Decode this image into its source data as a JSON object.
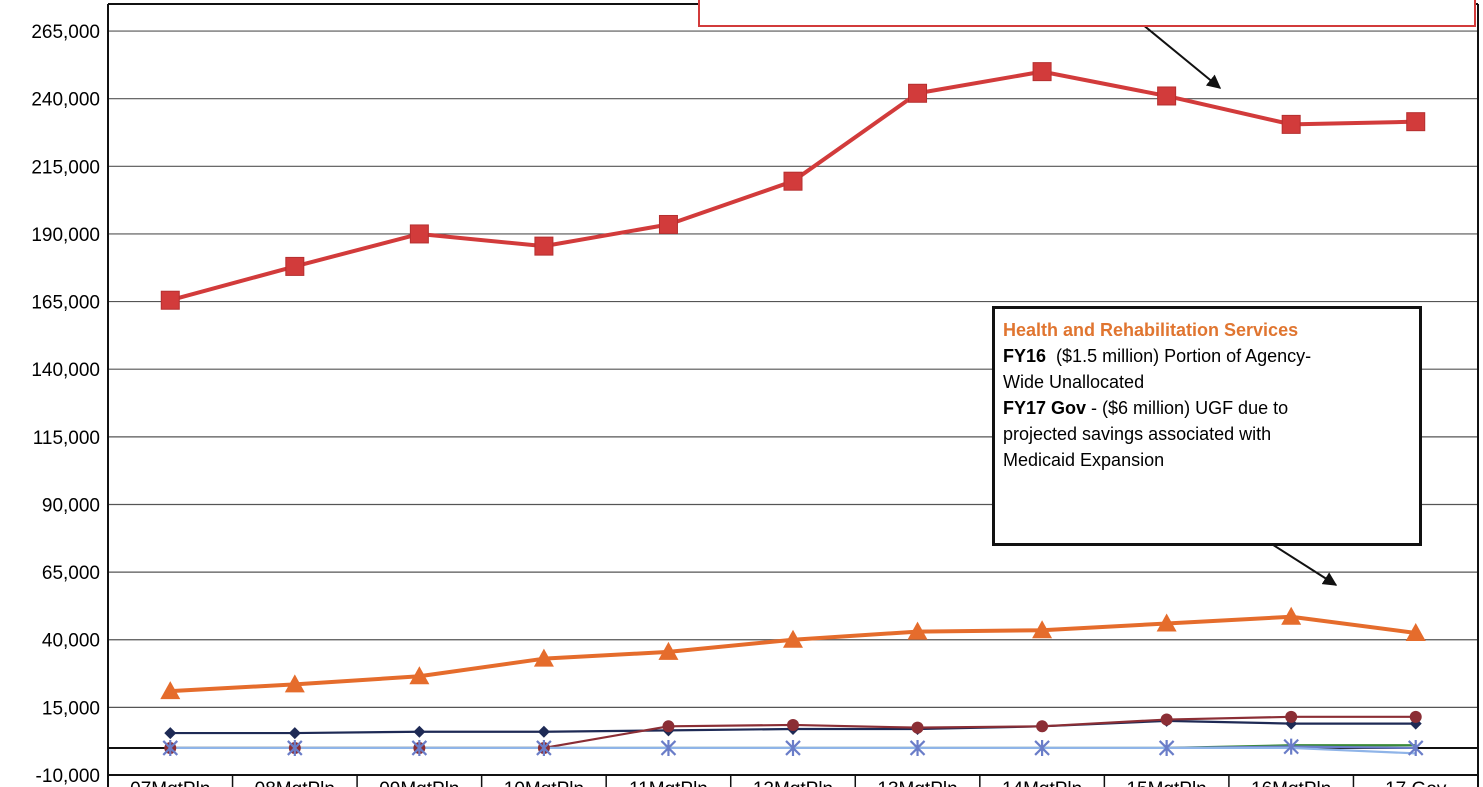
{
  "chart_data": {
    "type": "line",
    "title": "",
    "xlabel": "",
    "ylabel": "",
    "categories": [
      "07MgtPln",
      "08MgtPln",
      "09MgtPln",
      "10MgtPln",
      "11MgtPln",
      "12MgtPln",
      "13MgtPln",
      "14MgtPln",
      "15MgtPln",
      "16MgtPln",
      "17 Gov"
    ],
    "ylim": [
      -10000,
      275000
    ],
    "yticks": [
      -10000,
      15000,
      40000,
      65000,
      90000,
      115000,
      140000,
      165000,
      190000,
      215000,
      240000,
      265000
    ],
    "ytick_labels": [
      "-10,000",
      "15,000",
      "40,000",
      "65,000",
      "90,000",
      "115,000",
      "140,000",
      "165,000",
      "190,000",
      "215,000",
      "240,000",
      "265,000"
    ],
    "grid": "horizontal",
    "series": [
      {
        "color": "#d23b3b",
        "marker": "square",
        "values": [
          165500,
          178000,
          190000,
          185500,
          193500,
          209500,
          242000,
          250000,
          241000,
          230500,
          231500
        ]
      },
      {
        "color": "#e56c2c",
        "marker": "triangle",
        "values": [
          21000,
          23500,
          26500,
          33000,
          35500,
          40000,
          43000,
          43500,
          46000,
          48500,
          42500
        ]
      },
      {
        "color": "#1e2a55",
        "marker": "diamond",
        "values": [
          5500,
          5500,
          6000,
          6000,
          6500,
          7000,
          7000,
          8000,
          10000,
          9000,
          9000
        ]
      },
      {
        "color": "#8b2e35",
        "marker": "circle",
        "values": [
          0,
          0,
          0,
          0,
          8000,
          8500,
          7500,
          8000,
          10500,
          11500,
          11500
        ]
      },
      {
        "color": "#3a8a3a",
        "marker": "none",
        "values": [
          0,
          0,
          0,
          0,
          0,
          0,
          0,
          0,
          0,
          1000,
          1000
        ]
      },
      {
        "color": "#6a7dc8",
        "marker": "asterisk",
        "values": [
          0,
          0,
          0,
          0,
          0,
          0,
          0,
          0,
          0,
          500,
          0
        ]
      },
      {
        "color": "#8fb4e8",
        "marker": "none",
        "values": [
          0,
          0,
          0,
          0,
          0,
          0,
          0,
          0,
          0,
          0,
          -2000
        ]
      }
    ],
    "annotations": [
      {
        "id": "hrs",
        "title": "Health and Rehabilitation Services",
        "line1_bold": "FY16",
        "line1_text": "($1.5 million) Portion of Agency-",
        "line2_text": "Wide Unallocated",
        "line3_bold": "FY17 Gov",
        "line3_text": "- ($6 million) UGF due to",
        "line4_text": "projected savings associated with",
        "line5_text": "Medicaid Expansion"
      }
    ]
  }
}
